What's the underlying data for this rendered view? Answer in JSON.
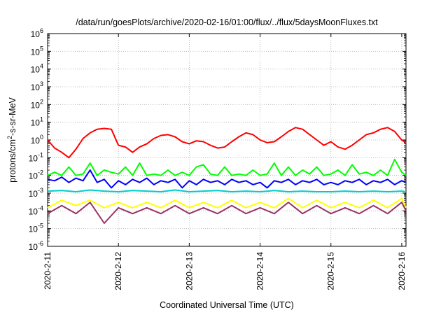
{
  "chart_data": {
    "type": "line",
    "title": "/data/run/goesPlots/archive/2020-02-16/01:00/flux/../flux/5daysMoonFluxes.txt",
    "xlabel": "Coordinated Universal Time (UTC)",
    "ylabel_main": "protons/cm",
    "ylabel_sup": "2",
    "ylabel_rest": "-s-sr-MeV",
    "x_scale": "time-days",
    "xlim": [
      0,
      5.06
    ],
    "y_scale": "log",
    "ylim_exp": [
      -6,
      6
    ],
    "y_ticks": [
      {
        "exp": -6,
        "label": "10",
        "sup": "-6"
      },
      {
        "exp": -5,
        "label": "10",
        "sup": "-5"
      },
      {
        "exp": -4,
        "label": "10",
        "sup": "-4"
      },
      {
        "exp": -3,
        "label": "10",
        "sup": "-3"
      },
      {
        "exp": -2,
        "label": "10",
        "sup": "-2"
      },
      {
        "exp": -1,
        "label": "10",
        "sup": "-1"
      },
      {
        "exp": 0,
        "label": "10",
        "sup": "0"
      },
      {
        "exp": 1,
        "label": "10",
        "sup": "1"
      },
      {
        "exp": 2,
        "label": "10",
        "sup": "2"
      },
      {
        "exp": 3,
        "label": "10",
        "sup": "3"
      },
      {
        "exp": 4,
        "label": "10",
        "sup": "4"
      },
      {
        "exp": 5,
        "label": "10",
        "sup": "5"
      },
      {
        "exp": 6,
        "label": "10",
        "sup": "6"
      }
    ],
    "x_ticks": [
      {
        "day": 0,
        "label": "2020-2-11"
      },
      {
        "day": 1,
        "label": "2020-2-12"
      },
      {
        "day": 2,
        "label": "2020-2-13"
      },
      {
        "day": 3,
        "label": "2020-2-14"
      },
      {
        "day": 4,
        "label": "2020-2-15"
      },
      {
        "day": 5,
        "label": "2020-2-16"
      }
    ],
    "grid": true,
    "series": [
      {
        "color": "#ff0000",
        "x": [
          0,
          0.1,
          0.2,
          0.3,
          0.4,
          0.5,
          0.6,
          0.7,
          0.8,
          0.9,
          1.0,
          1.1,
          1.2,
          1.3,
          1.4,
          1.5,
          1.6,
          1.7,
          1.8,
          1.9,
          2.0,
          2.1,
          2.2,
          2.3,
          2.4,
          2.5,
          2.6,
          2.7,
          2.8,
          2.9,
          3.0,
          3.1,
          3.2,
          3.3,
          3.4,
          3.5,
          3.6,
          3.7,
          3.8,
          3.9,
          4.0,
          4.1,
          4.2,
          4.3,
          4.4,
          4.5,
          4.6,
          4.7,
          4.8,
          4.9,
          5.0,
          5.06
        ],
        "y": [
          1.0,
          0.35,
          0.2,
          0.1,
          0.3,
          1.2,
          2.5,
          4.0,
          4.5,
          4.0,
          0.5,
          0.4,
          0.2,
          0.4,
          0.6,
          1.2,
          1.8,
          2.0,
          1.5,
          0.8,
          0.6,
          0.9,
          0.8,
          0.5,
          0.35,
          0.4,
          0.8,
          1.5,
          2.5,
          2.0,
          1.0,
          0.7,
          0.8,
          1.5,
          3.0,
          5.0,
          4.0,
          2.0,
          1.0,
          0.5,
          0.8,
          0.4,
          0.3,
          0.5,
          1.0,
          2.0,
          2.5,
          4.0,
          5.0,
          3.0,
          1.0,
          0.7
        ]
      },
      {
        "color": "#00ff00",
        "x": [
          0,
          0.1,
          0.2,
          0.3,
          0.4,
          0.5,
          0.6,
          0.7,
          0.8,
          0.9,
          1.0,
          1.1,
          1.2,
          1.3,
          1.4,
          1.5,
          1.6,
          1.7,
          1.8,
          1.9,
          2.0,
          2.1,
          2.2,
          2.3,
          2.4,
          2.5,
          2.6,
          2.7,
          2.8,
          2.9,
          3.0,
          3.1,
          3.2,
          3.3,
          3.4,
          3.5,
          3.6,
          3.7,
          3.8,
          3.9,
          4.0,
          4.1,
          4.2,
          4.3,
          4.4,
          4.5,
          4.6,
          4.7,
          4.8,
          4.9,
          5.0,
          5.06
        ],
        "y": [
          0.01,
          0.015,
          0.01,
          0.03,
          0.01,
          0.012,
          0.05,
          0.01,
          0.02,
          0.015,
          0.012,
          0.03,
          0.01,
          0.05,
          0.01,
          0.012,
          0.01,
          0.02,
          0.01,
          0.015,
          0.01,
          0.03,
          0.04,
          0.012,
          0.01,
          0.03,
          0.01,
          0.012,
          0.01,
          0.02,
          0.01,
          0.012,
          0.05,
          0.01,
          0.03,
          0.01,
          0.02,
          0.012,
          0.03,
          0.01,
          0.012,
          0.02,
          0.01,
          0.04,
          0.012,
          0.015,
          0.01,
          0.02,
          0.01,
          0.08,
          0.015,
          0.01
        ]
      },
      {
        "color": "#0000ff",
        "x": [
          0,
          0.1,
          0.2,
          0.3,
          0.4,
          0.5,
          0.6,
          0.7,
          0.8,
          0.9,
          1.0,
          1.1,
          1.2,
          1.3,
          1.4,
          1.5,
          1.6,
          1.7,
          1.8,
          1.9,
          2.0,
          2.1,
          2.2,
          2.3,
          2.4,
          2.5,
          2.6,
          2.7,
          2.8,
          2.9,
          3.0,
          3.1,
          3.2,
          3.3,
          3.4,
          3.5,
          3.6,
          3.7,
          3.8,
          3.9,
          4.0,
          4.1,
          4.2,
          4.3,
          4.4,
          4.5,
          4.6,
          4.7,
          4.8,
          4.9,
          5.0,
          5.06
        ],
        "y": [
          0.006,
          0.005,
          0.008,
          0.004,
          0.007,
          0.005,
          0.02,
          0.004,
          0.006,
          0.002,
          0.005,
          0.003,
          0.006,
          0.004,
          0.007,
          0.003,
          0.005,
          0.004,
          0.006,
          0.002,
          0.005,
          0.003,
          0.006,
          0.004,
          0.005,
          0.003,
          0.006,
          0.004,
          0.005,
          0.003,
          0.004,
          0.002,
          0.005,
          0.004,
          0.006,
          0.003,
          0.005,
          0.004,
          0.006,
          0.003,
          0.004,
          0.003,
          0.005,
          0.004,
          0.006,
          0.003,
          0.005,
          0.004,
          0.006,
          0.003,
          0.005,
          0.004
        ]
      },
      {
        "color": "#00cccc",
        "x": [
          0,
          0.2,
          0.4,
          0.6,
          0.8,
          1.0,
          1.2,
          1.4,
          1.6,
          1.8,
          2.0,
          2.2,
          2.4,
          2.6,
          2.8,
          3.0,
          3.2,
          3.4,
          3.6,
          3.8,
          4.0,
          4.2,
          4.4,
          4.6,
          4.8,
          5.0,
          5.06
        ],
        "y": [
          0.0013,
          0.0014,
          0.0012,
          0.0015,
          0.0013,
          0.0012,
          0.0014,
          0.0013,
          0.0012,
          0.0015,
          0.0012,
          0.0013,
          0.0014,
          0.0012,
          0.0013,
          0.0012,
          0.0014,
          0.0012,
          0.0013,
          0.0012,
          0.0012,
          0.0013,
          0.0012,
          0.0013,
          0.0012,
          0.0013,
          0.0012
        ]
      },
      {
        "color": "#ffff00",
        "x": [
          0,
          0.2,
          0.4,
          0.6,
          0.8,
          1.0,
          1.2,
          1.4,
          1.6,
          1.8,
          2.0,
          2.2,
          2.4,
          2.6,
          2.8,
          3.0,
          3.2,
          3.4,
          3.6,
          3.8,
          4.0,
          4.2,
          4.4,
          4.6,
          4.8,
          5.0,
          5.06
        ],
        "y": [
          0.00015,
          0.0004,
          0.0002,
          0.0004,
          0.00015,
          0.0003,
          0.00015,
          0.0003,
          0.00015,
          0.0004,
          0.00015,
          0.0003,
          0.00015,
          0.0004,
          0.00015,
          0.0003,
          0.00015,
          0.0005,
          0.00015,
          0.0004,
          0.00015,
          0.0003,
          0.00015,
          0.0004,
          0.00015,
          0.0005,
          0.00015
        ]
      },
      {
        "color": "#993366",
        "x": [
          0,
          0.2,
          0.4,
          0.6,
          0.8,
          1.0,
          1.2,
          1.4,
          1.6,
          1.8,
          2.0,
          2.2,
          2.4,
          2.6,
          2.8,
          3.0,
          3.2,
          3.4,
          3.6,
          3.8,
          4.0,
          4.2,
          4.4,
          4.6,
          4.8,
          5.0,
          5.06
        ],
        "y": [
          7e-05,
          0.0002,
          7e-05,
          0.0003,
          2e-05,
          0.00015,
          7e-05,
          0.00015,
          7e-05,
          0.0002,
          7e-05,
          0.00015,
          7e-05,
          0.0002,
          7e-05,
          0.00015,
          7e-05,
          0.0003,
          7e-05,
          0.0002,
          7e-05,
          0.00015,
          7e-05,
          0.0002,
          7e-05,
          0.0003,
          0.0001
        ]
      }
    ]
  }
}
